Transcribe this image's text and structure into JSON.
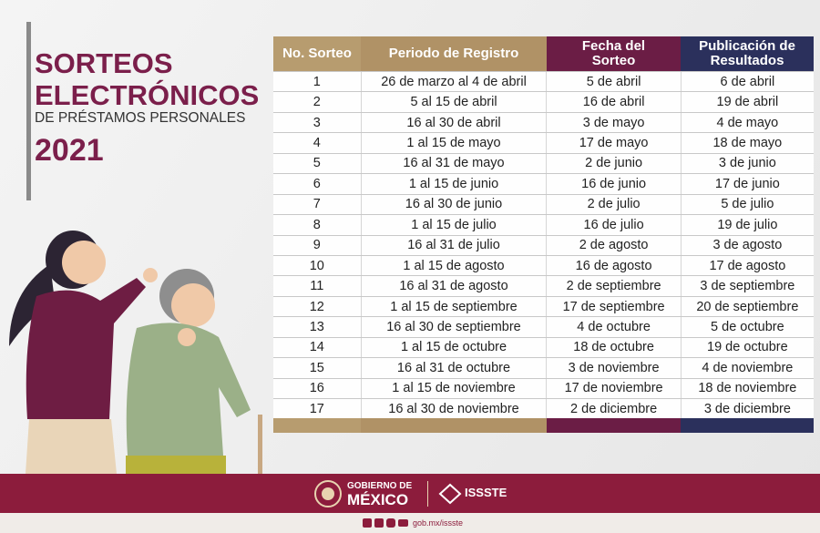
{
  "header": {
    "title_line1": "SORTEOS",
    "title_line2": "ELECTRÓNICOS",
    "subtitle": "DE PRÉSTAMOS PERSONALES",
    "year": "2021"
  },
  "table": {
    "columns": [
      "No. Sorteo",
      "Periodo de Registro",
      "Fecha del Sorteo",
      "Publicación de Resultados"
    ],
    "rows": [
      [
        "1",
        "26 de marzo al 4 de abril",
        "5 de abril",
        "6 de abril"
      ],
      [
        "2",
        "5 al 15 de abril",
        "16 de abril",
        "19 de abril"
      ],
      [
        "3",
        "16 al 30 de abril",
        "3 de mayo",
        "4 de mayo"
      ],
      [
        "4",
        "1 al 15 de mayo",
        "17 de mayo",
        "18 de mayo"
      ],
      [
        "5",
        "16 al 31 de mayo",
        "2 de junio",
        "3 de junio"
      ],
      [
        "6",
        "1 al 15 de junio",
        "16 de junio",
        "17 de junio"
      ],
      [
        "7",
        "16 al 30 de junio",
        "2 de julio",
        "5 de julio"
      ],
      [
        "8",
        "1 al 15 de julio",
        "16 de julio",
        "19 de julio"
      ],
      [
        "9",
        "16 al 31 de julio",
        "2 de agosto",
        "3 de agosto"
      ],
      [
        "10",
        "1 al 15 de agosto",
        "16 de agosto",
        "17 de agosto"
      ],
      [
        "11",
        "16 al 31 de agosto",
        "2 de septiembre",
        "3 de septiembre"
      ],
      [
        "12",
        "1 al 15 de septiembre",
        "17 de septiembre",
        "20 de septiembre"
      ],
      [
        "13",
        "16 al 30 de septiembre",
        "4 de octubre",
        "5 de octubre"
      ],
      [
        "14",
        "1 al 15 de octubre",
        "18 de octubre",
        "19 de octubre"
      ],
      [
        "15",
        "16 al 31 de octubre",
        "3 de noviembre",
        "4 de noviembre"
      ],
      [
        "16",
        "1 al 15 de noviembre",
        "17 de noviembre",
        "18 de noviembre"
      ],
      [
        "17",
        "16 al 30 de noviembre",
        "2 de diciembre",
        "3 de diciembre"
      ]
    ]
  },
  "footer": {
    "gov_line1": "GOBIERNO DE",
    "gov_line2": "MÉXICO",
    "agency": "ISSSTE",
    "url": "gob.mx/issste"
  }
}
